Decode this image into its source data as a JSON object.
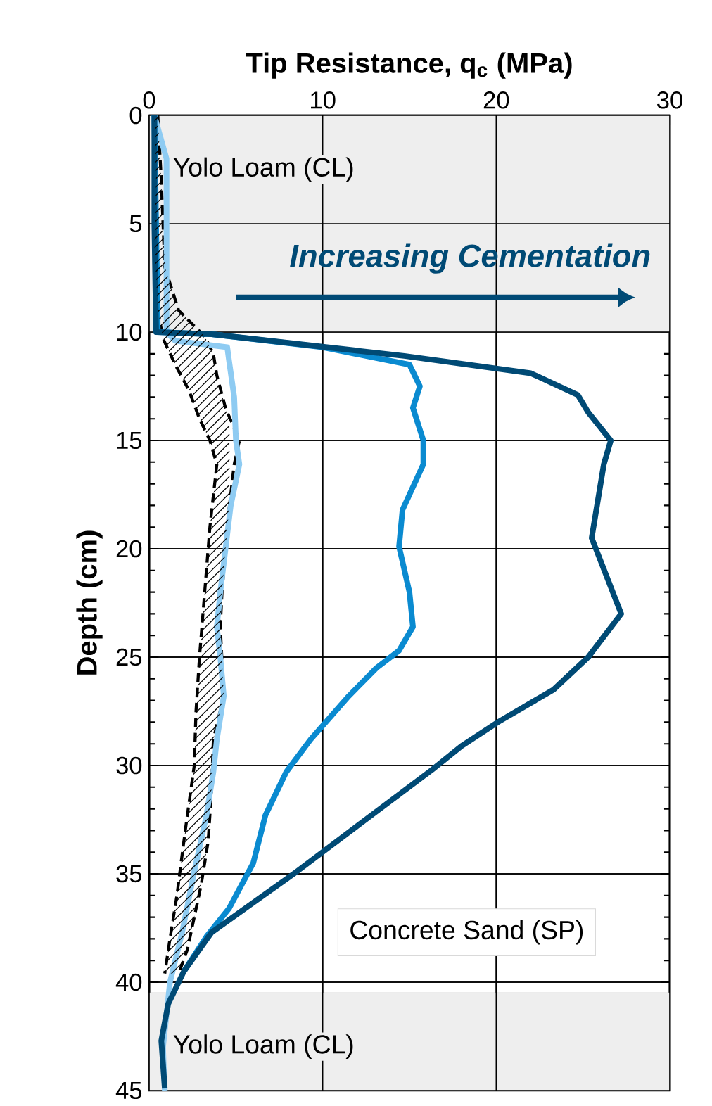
{
  "chart_data": {
    "type": "line",
    "xlabel": "Tip Resistance, q$_{c}$ (MPa)",
    "ylabel": "Depth (cm)",
    "xlim": [
      0,
      30
    ],
    "xticks": [
      0,
      10,
      20,
      30
    ],
    "ylim": [
      45,
      0
    ],
    "yticks": [
      0,
      5,
      10,
      15,
      20,
      25,
      30,
      35,
      40,
      45
    ],
    "grid": true,
    "bands": [
      {
        "axis": "y",
        "from": 0,
        "to": 10,
        "label": "Yolo Loam (CL)",
        "color": "#eeeeee"
      },
      {
        "axis": "y",
        "from": 40.5,
        "to": 45,
        "label": "Yolo Loam (CL)",
        "color": "#eeeeee"
      }
    ],
    "annotations": [
      "Increasing Cementation",
      "Concrete Sand (SP)"
    ],
    "series": [
      {
        "color": "#000000",
        "line_style": "dashed",
        "x": [
          0.3,
          0.4,
          0.3,
          0.5,
          0.8,
          1.5,
          2.3,
          2.9,
          3.5,
          3.9,
          3.5,
          3.3,
          3.1,
          2.9,
          2.7,
          2.6,
          2.2,
          2.0,
          1.6,
          1.2,
          0.9
        ],
        "values": [
          0,
          3,
          6,
          9,
          10.3,
          11.5,
          12.7,
          14,
          15,
          16.1,
          19,
          21,
          23,
          25,
          27.5,
          30,
          32.3,
          33.5,
          36,
          38,
          39.6
        ]
      },
      {
        "color": "#000000",
        "line_style": "dashed",
        "x": [
          0.5,
          0.7,
          0.9,
          1.7,
          3.2,
          3.7,
          3.9,
          4.4,
          5.2,
          4.9,
          4.6,
          4.4,
          4.2,
          4.1,
          4.3,
          3.7,
          3.6,
          3.5,
          3.4,
          3.0,
          2.2,
          1.7
        ],
        "values": [
          0,
          3,
          7,
          9,
          10.2,
          11,
          12,
          13.5,
          15,
          16.1,
          18.2,
          20,
          22,
          23.6,
          26.8,
          28.8,
          31,
          32.3,
          33.5,
          35.5,
          38.5,
          39.6
        ]
      },
      {
        "color": "#8ecbf2",
        "line_style": "solid",
        "x": [
          0.3,
          1.0,
          1.0,
          1.5,
          4.5,
          4.6,
          4.9,
          5.0,
          5.2,
          4.7,
          4.4,
          4.1,
          3.9,
          4.1,
          4.3,
          3.9,
          3.7,
          3.3,
          2.6,
          1.9,
          1.2,
          0.8,
          0.9
        ],
        "values": [
          0,
          2,
          10,
          10.4,
          10.7,
          11.3,
          13,
          15,
          16.1,
          18,
          20,
          22,
          23.6,
          25,
          26.8,
          28.8,
          30.3,
          32.3,
          34.9,
          37.7,
          40,
          43,
          45
        ]
      },
      {
        "color": "#0a8ad0",
        "line_style": "solid",
        "x": [
          0.3,
          0.4,
          0.5,
          3.6,
          10,
          15,
          15.6,
          15.2,
          15.8,
          15.8,
          14.6,
          14.4,
          15,
          15.2,
          14.4,
          13.1,
          11.5,
          9.3,
          7.9,
          6.7,
          6,
          4.6,
          3.3,
          2.0
        ],
        "values": [
          0,
          5,
          10,
          10.1,
          10.7,
          11.5,
          12.5,
          13.5,
          15,
          16.1,
          18.2,
          19.9,
          22,
          23.6,
          24.7,
          25.5,
          26.8,
          28.8,
          30.3,
          32.3,
          34.5,
          36.6,
          37.9,
          39.5
        ]
      },
      {
        "color": "#004a75",
        "line_style": "solid",
        "x": [
          0.3,
          0.3,
          0.4,
          3.6,
          14.7,
          22,
          24.7,
          25.3,
          26.6,
          26.2,
          25.5,
          27.2,
          25.3,
          23.3,
          20.1,
          18,
          16.3,
          12.8,
          8.5,
          3.6,
          2,
          1.1,
          0.7,
          0.9
        ],
        "values": [
          0,
          5,
          10,
          10.1,
          11.1,
          11.9,
          12.9,
          13.7,
          15,
          16.1,
          19.5,
          23,
          25,
          26.5,
          28,
          29.1,
          30.2,
          32.3,
          34.9,
          37.7,
          39.5,
          41,
          42.7,
          44.9
        ]
      }
    ]
  }
}
